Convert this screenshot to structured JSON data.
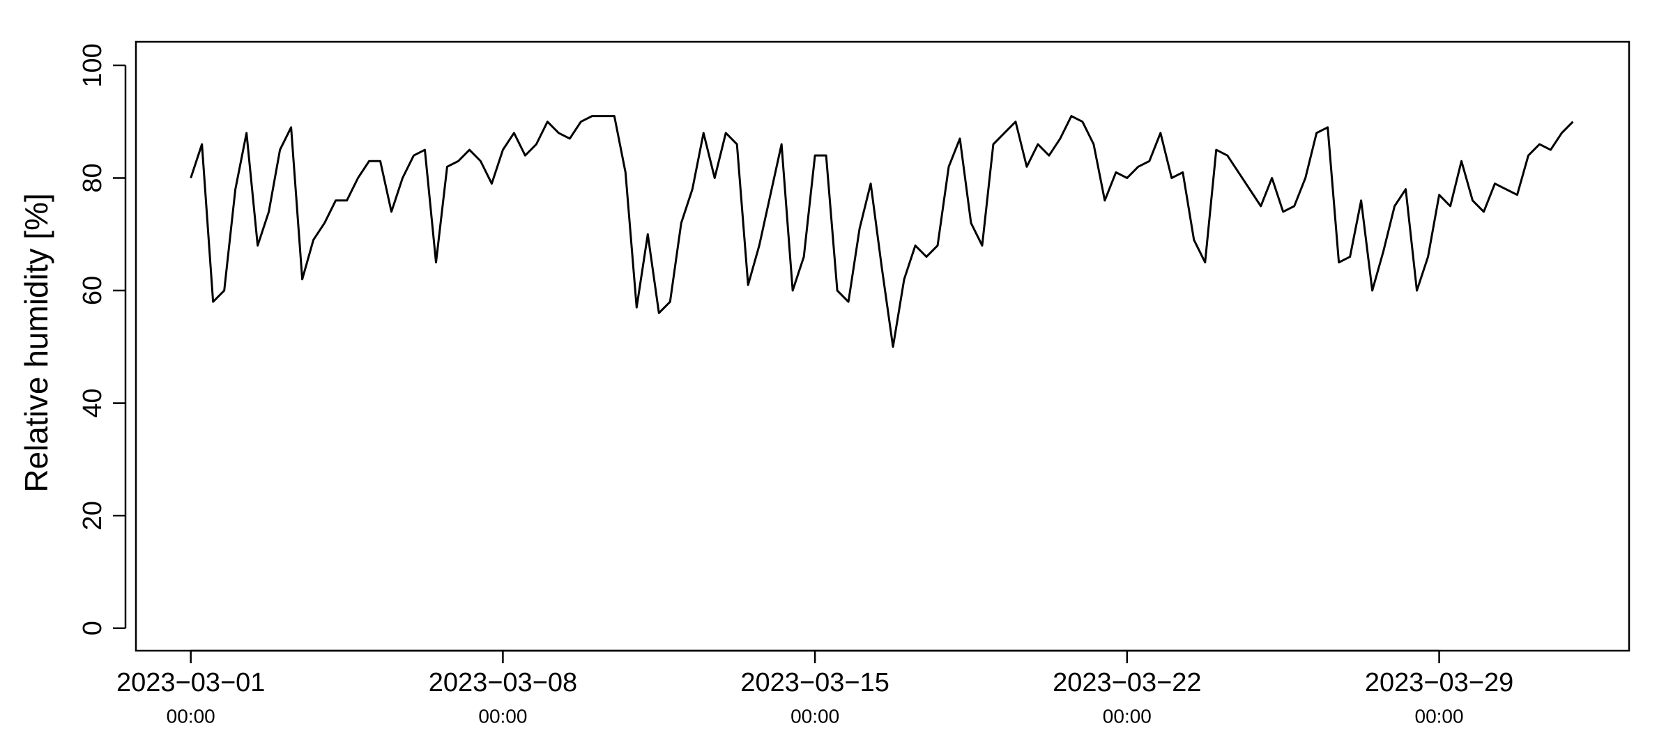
{
  "chart_data": {
    "type": "line",
    "ylabel": "Relative humidity [%]",
    "xlim": [
      "2023-02-27 18:28",
      "2023-04-02 06:14"
    ],
    "ylim": [
      -4,
      104.2
    ],
    "yticks": [
      0,
      20,
      40,
      60,
      80,
      100
    ],
    "xticks": [
      {
        "value": "2023-03-01 00:00",
        "label": [
          "2023−03−01",
          "00:00"
        ]
      },
      {
        "value": "2023-03-08 00:00",
        "label": [
          "2023−03−08",
          "00:00"
        ]
      },
      {
        "value": "2023-03-15 00:00",
        "label": [
          "2023−03−15",
          "00:00"
        ]
      },
      {
        "value": "2023-03-22 00:00",
        "label": [
          "2023−03−22",
          "00:00"
        ]
      },
      {
        "value": "2023-03-29 00:00",
        "label": [
          "2023−03−29",
          "00:00"
        ]
      }
    ],
    "color": "#000000",
    "x": [
      "2023-03-01 00:00",
      "2023-03-01 06:00",
      "2023-03-01 12:00",
      "2023-03-01 18:00",
      "2023-03-02 00:00",
      "2023-03-02 06:00",
      "2023-03-02 12:00",
      "2023-03-02 18:00",
      "2023-03-03 00:00",
      "2023-03-03 06:00",
      "2023-03-03 12:00",
      "2023-03-03 18:00",
      "2023-03-04 00:00",
      "2023-03-04 06:00",
      "2023-03-04 12:00",
      "2023-03-04 18:00",
      "2023-03-05 00:00",
      "2023-03-05 06:00",
      "2023-03-05 12:00",
      "2023-03-05 18:00",
      "2023-03-06 00:00",
      "2023-03-06 06:00",
      "2023-03-06 12:00",
      "2023-03-06 18:00",
      "2023-03-07 00:00",
      "2023-03-07 06:00",
      "2023-03-07 12:00",
      "2023-03-07 18:00",
      "2023-03-08 00:00",
      "2023-03-08 06:00",
      "2023-03-08 12:00",
      "2023-03-08 18:00",
      "2023-03-09 00:00",
      "2023-03-09 06:00",
      "2023-03-09 12:00",
      "2023-03-09 18:00",
      "2023-03-10 00:00",
      "2023-03-10 06:00",
      "2023-03-10 12:00",
      "2023-03-10 18:00",
      "2023-03-11 00:00",
      "2023-03-11 06:00",
      "2023-03-11 12:00",
      "2023-03-11 18:00",
      "2023-03-12 00:00",
      "2023-03-12 06:00",
      "2023-03-12 12:00",
      "2023-03-12 18:00",
      "2023-03-13 00:00",
      "2023-03-13 06:00",
      "2023-03-13 12:00",
      "2023-03-13 18:00",
      "2023-03-14 00:00",
      "2023-03-14 06:00",
      "2023-03-14 12:00",
      "2023-03-14 18:00",
      "2023-03-15 00:00",
      "2023-03-15 06:00",
      "2023-03-15 12:00",
      "2023-03-15 18:00",
      "2023-03-16 00:00",
      "2023-03-16 06:00",
      "2023-03-16 12:00",
      "2023-03-16 18:00",
      "2023-03-17 00:00",
      "2023-03-17 06:00",
      "2023-03-17 12:00",
      "2023-03-17 18:00",
      "2023-03-18 00:00",
      "2023-03-18 06:00",
      "2023-03-18 12:00",
      "2023-03-18 18:00",
      "2023-03-19 00:00",
      "2023-03-19 06:00",
      "2023-03-19 12:00",
      "2023-03-19 18:00",
      "2023-03-20 00:00",
      "2023-03-20 06:00",
      "2023-03-20 12:00",
      "2023-03-20 18:00",
      "2023-03-21 00:00",
      "2023-03-21 06:00",
      "2023-03-21 12:00",
      "2023-03-21 18:00",
      "2023-03-22 00:00",
      "2023-03-22 06:00",
      "2023-03-22 12:00",
      "2023-03-22 18:00",
      "2023-03-23 00:00",
      "2023-03-23 06:00",
      "2023-03-23 12:00",
      "2023-03-23 18:00",
      "2023-03-24 00:00",
      "2023-03-24 06:00",
      "2023-03-24 12:00",
      "2023-03-24 18:00",
      "2023-03-25 00:00",
      "2023-03-25 06:00",
      "2023-03-25 12:00",
      "2023-03-25 18:00",
      "2023-03-26 00:00",
      "2023-03-26 06:00",
      "2023-03-26 12:00",
      "2023-03-26 18:00",
      "2023-03-27 00:00",
      "2023-03-27 06:00",
      "2023-03-27 12:00",
      "2023-03-27 18:00",
      "2023-03-28 00:00",
      "2023-03-28 06:00",
      "2023-03-28 12:00",
      "2023-03-28 18:00",
      "2023-03-29 00:00",
      "2023-03-29 06:00",
      "2023-03-29 12:00",
      "2023-03-29 18:00",
      "2023-03-30 00:00",
      "2023-03-30 06:00",
      "2023-03-30 12:00",
      "2023-03-30 18:00",
      "2023-03-31 00:00",
      "2023-03-31 06:00",
      "2023-03-31 12:00",
      "2023-03-31 18:00",
      "2023-04-01 00:00"
    ],
    "values": [
      80,
      86,
      58,
      60,
      78,
      88,
      68,
      74,
      85,
      89,
      62,
      69,
      72,
      76,
      76,
      80,
      83,
      83,
      74,
      80,
      84,
      85,
      65,
      82,
      83,
      85,
      83,
      79,
      85,
      88,
      84,
      86,
      90,
      88,
      87,
      90,
      91,
      91,
      91,
      81,
      57,
      70,
      56,
      58,
      72,
      78,
      88,
      80,
      88,
      86,
      61,
      68,
      77,
      86,
      60,
      66,
      84,
      84,
      60,
      58,
      71,
      79,
      64,
      50,
      62,
      68,
      66,
      68,
      82,
      87,
      72,
      68,
      86,
      88,
      90,
      82,
      86,
      84,
      87,
      91,
      90,
      86,
      76,
      81,
      80,
      82,
      83,
      88,
      80,
      81,
      69,
      65,
      85,
      84,
      81,
      78,
      75,
      80,
      74,
      75,
      80,
      88,
      89,
      65,
      66,
      76,
      60,
      67,
      75,
      78,
      60,
      66,
      77,
      75,
      83,
      76,
      74,
      79,
      78,
      77,
      84,
      86,
      85,
      88,
      90
    ]
  }
}
